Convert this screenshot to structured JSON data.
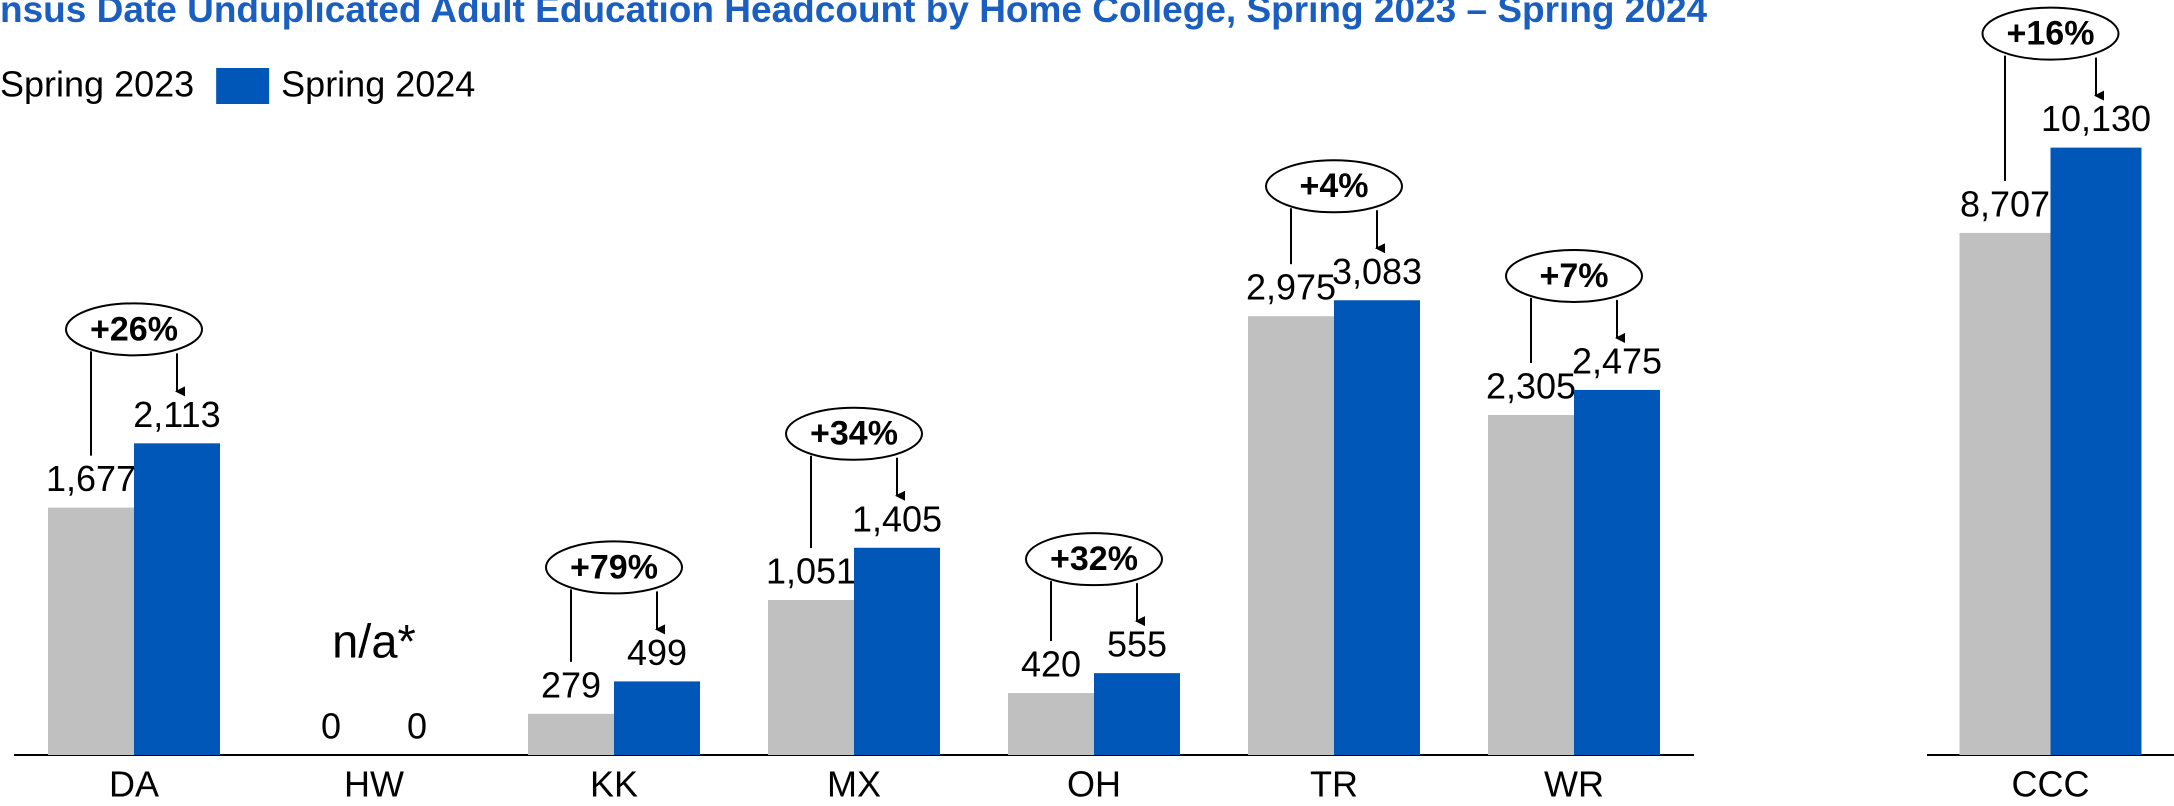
{
  "title": "nsus Date Unduplicated Adult Education Headcount by Home College, Spring 2023 – Spring 2024",
  "chart_data": [
    {
      "type": "bar",
      "categories": [
        "DA",
        "HW",
        "KK",
        "MX",
        "OH",
        "TR",
        "WR"
      ],
      "series": [
        {
          "name": "Spring 2023",
          "color": "#c0c0c0",
          "values": [
            1677,
            0,
            279,
            1051,
            420,
            2975,
            2305
          ],
          "value_labels": [
            "1,677",
            "0",
            "279",
            "1,051",
            "420",
            "2,975",
            "2,305"
          ]
        },
        {
          "name": "Spring 2024",
          "color": "#0057b8",
          "values": [
            2113,
            0,
            499,
            1405,
            555,
            3083,
            2475
          ],
          "value_labels": [
            "2,113",
            "0",
            "499",
            "1,405",
            "555",
            "3,083",
            "2,475"
          ]
        }
      ],
      "annotations": [
        "+26%",
        null,
        "+79%",
        "+34%",
        "+32%",
        "+4%",
        "+7%"
      ],
      "category_notes": [
        null,
        "n/a*",
        null,
        null,
        null,
        null,
        null
      ],
      "ylim": [
        0,
        5000
      ]
    },
    {
      "type": "bar",
      "categories": [
        "CCC"
      ],
      "series": [
        {
          "color": "#c0c0c0",
          "values": [
            8707
          ],
          "value_labels": [
            "8,707"
          ]
        },
        {
          "color": "#0057b8",
          "values": [
            10130
          ],
          "value_labels": [
            "10,130"
          ]
        }
      ],
      "annotations": [
        "+16%"
      ],
      "ylim": [
        0,
        12300
      ]
    }
  ]
}
